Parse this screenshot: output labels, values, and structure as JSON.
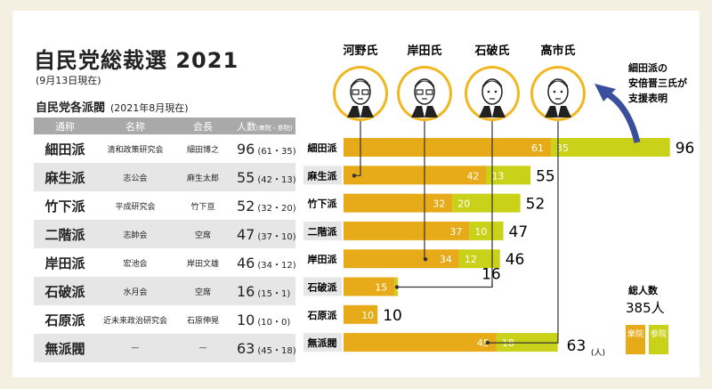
{
  "title": "自民党総裁選 2021",
  "as_of": "(9月13日現在)",
  "table": {
    "subtitle": "自民党各派閥",
    "subtitle_asof": "(2021年8月現在)",
    "headers": {
      "c1": "通称",
      "c2": "名称",
      "c3": "会長",
      "c4": "人数",
      "c4_note": "(衆院・参院)"
    },
    "rows": [
      {
        "alias": "細田派",
        "name": "清和政策研究会",
        "leader": "細田博之",
        "total": "96",
        "breakdown": "(61・35)"
      },
      {
        "alias": "麻生派",
        "name": "志公会",
        "leader": "麻生太郎",
        "total": "55",
        "breakdown": "(42・13)"
      },
      {
        "alias": "竹下派",
        "name": "平成研究会",
        "leader": "竹下亘",
        "total": "52",
        "breakdown": "(32・20)"
      },
      {
        "alias": "二階派",
        "name": "志帥会",
        "leader": "空席",
        "total": "47",
        "breakdown": "(37・10)"
      },
      {
        "alias": "岸田派",
        "name": "宏池会",
        "leader": "岸田文雄",
        "total": "46",
        "breakdown": "(34・12)"
      },
      {
        "alias": "石破派",
        "name": "水月会",
        "leader": "空席",
        "total": "16",
        "breakdown": "(15・1)"
      },
      {
        "alias": "石原派",
        "name": "近未来政治研究会",
        "leader": "石原伸晃",
        "total": "10",
        "breakdown": "(10・0)"
      },
      {
        "alias": "無派閥",
        "name": "—",
        "leader": "—",
        "total": "63",
        "breakdown": "(45・18)"
      }
    ]
  },
  "candidates": [
    {
      "name": "河野氏"
    },
    {
      "name": "岸田氏"
    },
    {
      "name": "石破氏"
    },
    {
      "name": "高市氏"
    }
  ],
  "annotation": {
    "line1": "細田派の",
    "line2": "安倍晋三氏が",
    "line3": "支援表明"
  },
  "total_note": {
    "label": "総人数",
    "value": "385人"
  },
  "unit_label": "(人)",
  "colors": {
    "lower_house": "#e7ab19",
    "upper_house": "#c9d118",
    "shade": "#e6e6e6",
    "header": "#a9a9a9",
    "arrow": "#3a4f9c"
  },
  "chart_data": {
    "type": "bar",
    "orientation": "horizontal",
    "stacked": true,
    "categories": [
      "細田派",
      "麻生派",
      "竹下派",
      "二階派",
      "岸田派",
      "石破派",
      "石原派",
      "無派閥"
    ],
    "series": [
      {
        "name": "衆院",
        "values": [
          61,
          42,
          32,
          37,
          34,
          15,
          10,
          45
        ]
      },
      {
        "name": "参院",
        "values": [
          35,
          13,
          20,
          10,
          12,
          1,
          0,
          18
        ]
      }
    ],
    "totals": [
      96,
      55,
      52,
      47,
      46,
      16,
      10,
      63
    ],
    "xlim": [
      0,
      100
    ]
  }
}
